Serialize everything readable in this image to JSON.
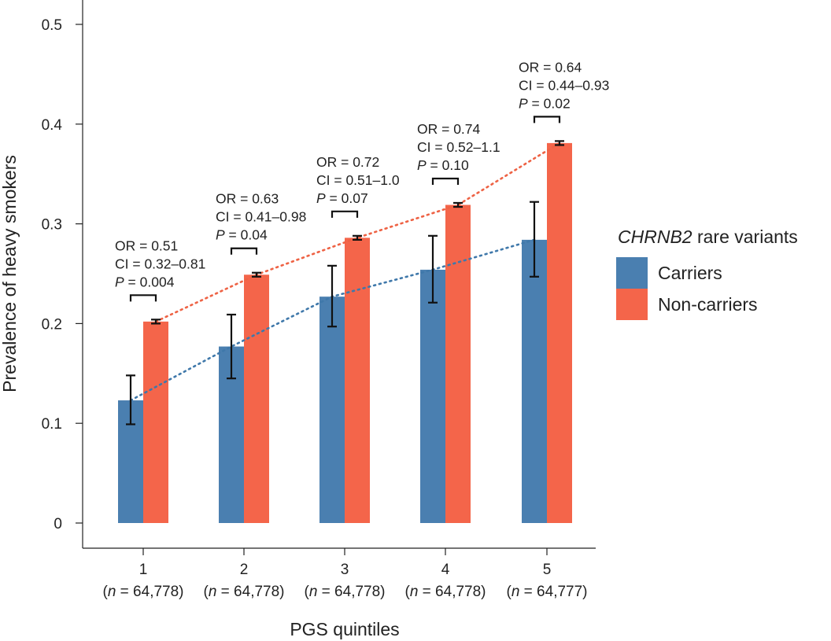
{
  "chart_data": {
    "type": "bar",
    "xlabel": "PGS quintiles",
    "ylabel": "Prevalence of heavy smokers",
    "ylim": [
      0,
      0.5
    ],
    "yticks": [
      "0",
      "0.1",
      "0.2",
      "0.3",
      "0.4",
      "0.5"
    ],
    "categories": [
      "1",
      "2",
      "3",
      "4",
      "5"
    ],
    "category_n": [
      "64,778",
      "64,778",
      "64,778",
      "64,778",
      "64,777"
    ],
    "legend": {
      "title_gene": "CHRNB2",
      "title_rest": " rare variants",
      "placement": "right"
    },
    "series": [
      {
        "name": "Carriers",
        "color": "#4a7fb0",
        "values": [
          0.123,
          0.177,
          0.227,
          0.254,
          0.284
        ],
        "err_low": [
          0.099,
          0.145,
          0.197,
          0.221,
          0.247
        ],
        "err_high": [
          0.148,
          0.209,
          0.258,
          0.288,
          0.322
        ]
      },
      {
        "name": "Non-carriers",
        "color": "#f4654a",
        "values": [
          0.202,
          0.249,
          0.286,
          0.319,
          0.381
        ],
        "err_low": [
          0.2,
          0.247,
          0.284,
          0.317,
          0.379
        ],
        "err_high": [
          0.204,
          0.251,
          0.288,
          0.321,
          0.383
        ]
      }
    ],
    "annotations": [
      {
        "or": "OR = 0.51",
        "ci": "CI = 0.32–0.81",
        "p": " = 0.004"
      },
      {
        "or": "OR = 0.63",
        "ci": "CI = 0.41–0.98",
        "p": " = 0.04"
      },
      {
        "or": "OR = 0.72",
        "ci": "CI = 0.51–1.0",
        "p": " = 0.07"
      },
      {
        "or": "OR = 0.74",
        "ci": "CI = 0.52–1.1",
        "p": " = 0.10"
      },
      {
        "or": "OR = 0.64",
        "ci": "CI = 0.44–0.93",
        "p": " = 0.02"
      }
    ],
    "trend_lines": "dotted",
    "grid": false
  }
}
